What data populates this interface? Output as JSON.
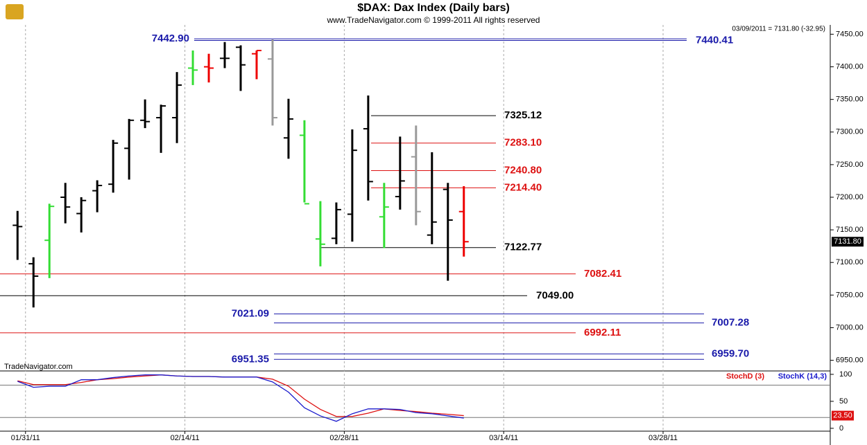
{
  "chart_data": {
    "type": "ohlc",
    "title": "$DAX:  Dax Index  (Daily bars)",
    "subtitle": "www.TradeNavigator.com © 1999-2011 All rights reserved",
    "header": "03/09/2011 = 7131.80 (-32.95)",
    "watermark": "TradeNavigator.com",
    "xlim": [
      -1.1,
      50.9
    ],
    "xticks": [
      {
        "value": 0.5,
        "label": "01/31/11"
      },
      {
        "value": 10.5,
        "label": "02/14/11"
      },
      {
        "value": 20.5,
        "label": "02/28/11"
      },
      {
        "value": 30.5,
        "label": "03/14/11"
      },
      {
        "value": 40.5,
        "label": "03/28/11"
      }
    ],
    "ylim": [
      6940,
      7460
    ],
    "yticks": [
      {
        "value": 6950,
        "label": "6950.00"
      },
      {
        "value": 7000,
        "label": "7000.00"
      },
      {
        "value": 7050,
        "label": "7050.00"
      },
      {
        "value": 7100,
        "label": "7100.00"
      },
      {
        "value": 7150,
        "label": "7150.00"
      },
      {
        "value": 7200,
        "label": "7200.00"
      },
      {
        "value": 7250,
        "label": "7250.00"
      },
      {
        "value": 7300,
        "label": "7300.00"
      },
      {
        "value": 7350,
        "label": "7350.00"
      },
      {
        "value": 7400,
        "label": "7400.00"
      },
      {
        "value": 7450,
        "label": "7450.00"
      }
    ],
    "ohlc": {
      "open": [
        7157,
        7098,
        7134,
        7200,
        7175,
        7210,
        7220,
        7275,
        7318,
        7322,
        7322,
        7398,
        7400,
        7413,
        7430,
        7420,
        7412,
        7291,
        7295,
        7136,
        7137,
        7174,
        7305,
        7170,
        7201,
        7262,
        7142,
        7212,
        7178
      ],
      "high": [
        7179,
        7108,
        7190,
        7222,
        7200,
        7226,
        7288,
        7320,
        7350,
        7342,
        7392,
        7425,
        7420,
        7438,
        7433,
        7425,
        7442,
        7351,
        7318,
        7194,
        7192,
        7304,
        7356,
        7222,
        7293,
        7310,
        7269,
        7222,
        7217
      ],
      "low": [
        7104,
        7031,
        7076,
        7160,
        7146,
        7177,
        7207,
        7227,
        7306,
        7268,
        7283,
        7372,
        7376,
        7398,
        7363,
        7381,
        7310,
        7259,
        7192,
        7094,
        7128,
        7132,
        7195,
        7122,
        7181,
        7157,
        7128,
        7072,
        7109
      ],
      "close": [
        7155,
        7079,
        7186,
        7185,
        7195,
        7218,
        7283,
        7318,
        7316,
        7340,
        7372,
        7395,
        7398,
        7413,
        7403,
        7425,
        7322,
        7320,
        7190,
        7128,
        7181,
        7272,
        7224,
        7185,
        7225,
        7178,
        7162,
        7165,
        7131.8
      ],
      "colors": [
        "#000000",
        "#000000",
        "#33dd33",
        "#000000",
        "#000000",
        "#000000",
        "#000000",
        "#000000",
        "#000000",
        "#000000",
        "#000000",
        "#33dd33",
        "#ee0000",
        "#000000",
        "#000000",
        "#ee0000",
        "#999999",
        "#000000",
        "#33dd33",
        "#33dd33",
        "#000000",
        "#000000",
        "#000000",
        "#33dd33",
        "#000000",
        "#999999",
        "#000000",
        "#000000",
        "#ee0000"
      ],
      "last_label": "7131.80"
    },
    "levels": [
      {
        "value": 7442.9,
        "label": "7442.90",
        "color": "#1a1aaa"
      },
      {
        "value": 7440.41,
        "label": "7440.41",
        "color": "#1a1aaa"
      },
      {
        "value": 7325.12,
        "label": "7325.12",
        "color": "#000000"
      },
      {
        "value": 7283.1,
        "label": "7283.10",
        "color": "#dd1111"
      },
      {
        "value": 7240.8,
        "label": "7240.80",
        "color": "#dd1111"
      },
      {
        "value": 7214.4,
        "label": "7214.40",
        "color": "#dd1111"
      },
      {
        "value": 7122.77,
        "label": "7122.77",
        "color": "#000000"
      },
      {
        "value": 7082.41,
        "label": "7082.41",
        "color": "#dd1111"
      },
      {
        "value": 7049,
        "label": "7049.00",
        "color": "#000000"
      },
      {
        "value": 7021.09,
        "label": "7021.09",
        "color": "#1a1aaa"
      },
      {
        "value": 7007.28,
        "label": "7007.28",
        "color": "#1a1aaa"
      },
      {
        "value": 6992.11,
        "label": "6992.11",
        "color": "#dd1111"
      },
      {
        "value": 6951.35,
        "label": "6951.35",
        "color": "#1a1aaa"
      },
      {
        "value": 6959.7,
        "label": "6959.70",
        "color": "#1a1aaa"
      }
    ],
    "stoch": {
      "ylim": [
        -4,
        105
      ],
      "yticks": [
        0,
        50,
        100
      ],
      "reference_lines": [
        80,
        20
      ],
      "series": [
        {
          "name": "StochD (3)",
          "color": "#dd1111",
          "values": [
            88,
            81,
            81,
            81,
            85,
            90,
            92,
            95,
            97,
            99,
            97,
            96,
            96,
            95,
            95,
            95,
            91,
            78,
            54,
            35,
            22,
            22,
            28,
            36,
            33,
            31,
            28,
            26,
            23.5
          ]
        },
        {
          "name": "StochK (14,3)",
          "color": "#1a1acc",
          "values": [
            87,
            76,
            78,
            78,
            90,
            90,
            94,
            97,
            99,
            99,
            97,
            96,
            96,
            95,
            95,
            95,
            86,
            67,
            38,
            23,
            13,
            27,
            36,
            36,
            35,
            29,
            27,
            23,
            19
          ]
        }
      ],
      "last_label": "23.50"
    }
  }
}
